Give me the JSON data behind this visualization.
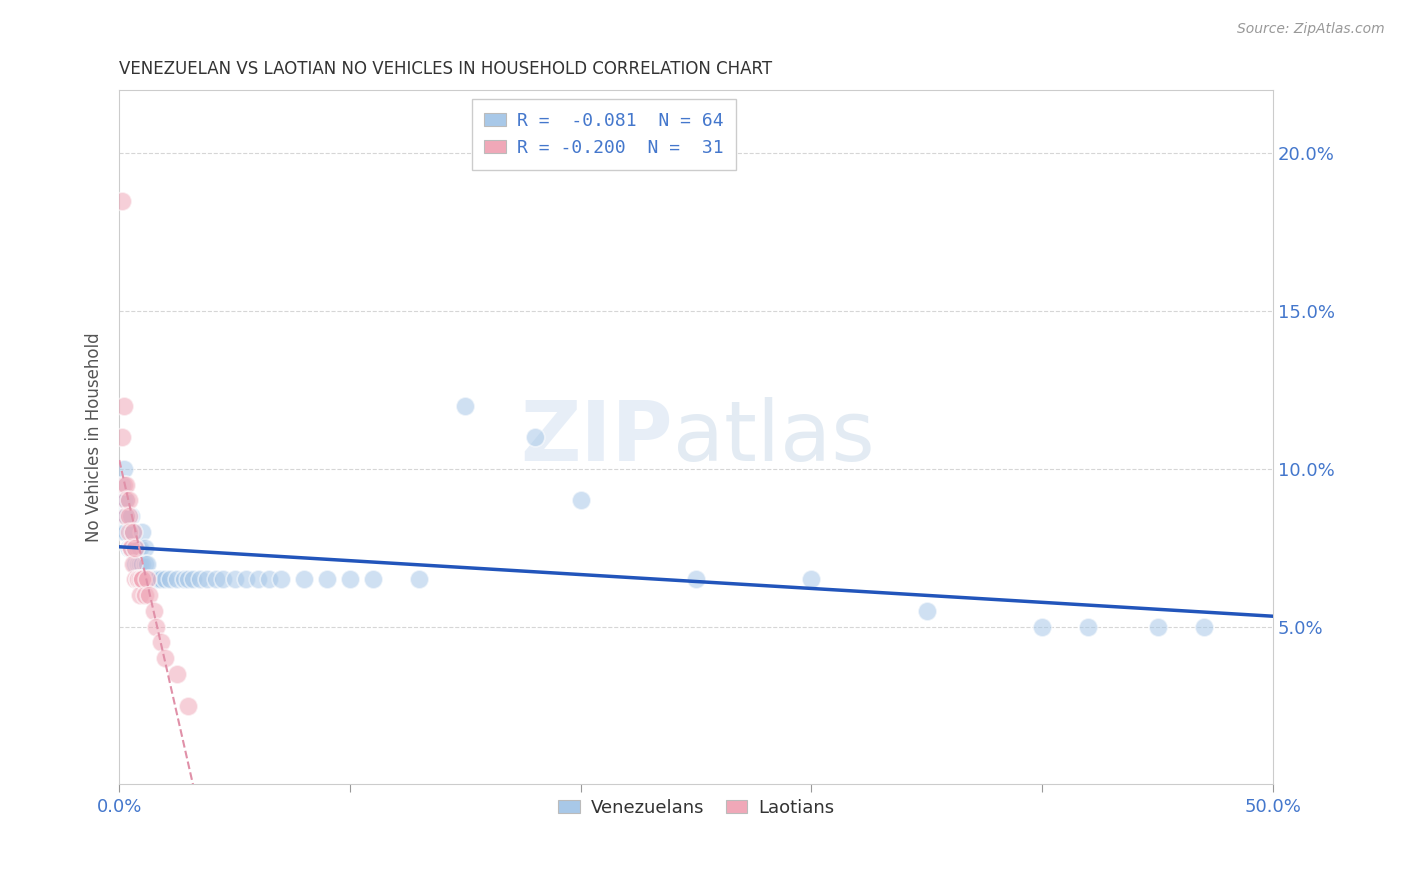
{
  "title": "VENEZUELAN VS LAOTIAN NO VEHICLES IN HOUSEHOLD CORRELATION CHART",
  "source": "Source: ZipAtlas.com",
  "ylabel": "No Vehicles in Household",
  "yticks_right": [
    "20.0%",
    "15.0%",
    "10.0%",
    "5.0%"
  ],
  "ytick_vals_right": [
    0.2,
    0.15,
    0.1,
    0.05
  ],
  "legend_line1": "R =  -0.081  N = 64",
  "legend_line2": "R = -0.200  N =  31",
  "legend_label_blue": "Venezuelans",
  "legend_label_pink": "Laotians",
  "blue_color": "#A8C8E8",
  "pink_color": "#F0A8B8",
  "blue_line_color": "#2255BB",
  "pink_line_color": "#E090A8",
  "blue_text_color": "#4477CC",
  "axis_color": "#4477CC",
  "venezuelan_x": [
    0.001,
    0.001,
    0.001,
    0.002,
    0.002,
    0.002,
    0.002,
    0.003,
    0.003,
    0.003,
    0.004,
    0.004,
    0.005,
    0.005,
    0.005,
    0.006,
    0.006,
    0.007,
    0.007,
    0.008,
    0.008,
    0.009,
    0.009,
    0.01,
    0.01,
    0.011,
    0.011,
    0.012,
    0.013,
    0.014,
    0.015,
    0.016,
    0.017,
    0.018,
    0.02,
    0.022,
    0.025,
    0.028,
    0.03,
    0.032,
    0.035,
    0.038,
    0.042,
    0.045,
    0.05,
    0.055,
    0.06,
    0.065,
    0.07,
    0.08,
    0.09,
    0.1,
    0.11,
    0.13,
    0.15,
    0.18,
    0.2,
    0.25,
    0.3,
    0.35,
    0.4,
    0.42,
    0.45,
    0.47
  ],
  "venezuelan_y": [
    0.095,
    0.09,
    0.085,
    0.1,
    0.09,
    0.085,
    0.08,
    0.09,
    0.085,
    0.08,
    0.075,
    0.075,
    0.085,
    0.08,
    0.075,
    0.08,
    0.075,
    0.075,
    0.07,
    0.075,
    0.07,
    0.075,
    0.07,
    0.08,
    0.07,
    0.075,
    0.07,
    0.07,
    0.065,
    0.065,
    0.065,
    0.065,
    0.065,
    0.065,
    0.065,
    0.065,
    0.065,
    0.065,
    0.065,
    0.065,
    0.065,
    0.065,
    0.065,
    0.065,
    0.065,
    0.065,
    0.065,
    0.065,
    0.065,
    0.065,
    0.065,
    0.065,
    0.065,
    0.065,
    0.12,
    0.11,
    0.09,
    0.065,
    0.065,
    0.055,
    0.05,
    0.05,
    0.05,
    0.05
  ],
  "laotian_x": [
    0.001,
    0.001,
    0.002,
    0.002,
    0.003,
    0.003,
    0.003,
    0.004,
    0.004,
    0.004,
    0.005,
    0.005,
    0.006,
    0.006,
    0.007,
    0.007,
    0.008,
    0.008,
    0.009,
    0.009,
    0.01,
    0.01,
    0.011,
    0.012,
    0.013,
    0.015,
    0.016,
    0.018,
    0.02,
    0.025,
    0.03
  ],
  "laotian_y": [
    0.185,
    0.11,
    0.12,
    0.095,
    0.095,
    0.09,
    0.085,
    0.09,
    0.085,
    0.08,
    0.075,
    0.075,
    0.08,
    0.07,
    0.075,
    0.065,
    0.065,
    0.065,
    0.065,
    0.06,
    0.065,
    0.065,
    0.06,
    0.065,
    0.06,
    0.055,
    0.05,
    0.045,
    0.04,
    0.035,
    0.025
  ],
  "xmin": 0.0,
  "xmax": 0.5,
  "ymin": 0.0,
  "ymax": 0.22,
  "scatter_size": 180,
  "scatter_alpha": 0.55
}
